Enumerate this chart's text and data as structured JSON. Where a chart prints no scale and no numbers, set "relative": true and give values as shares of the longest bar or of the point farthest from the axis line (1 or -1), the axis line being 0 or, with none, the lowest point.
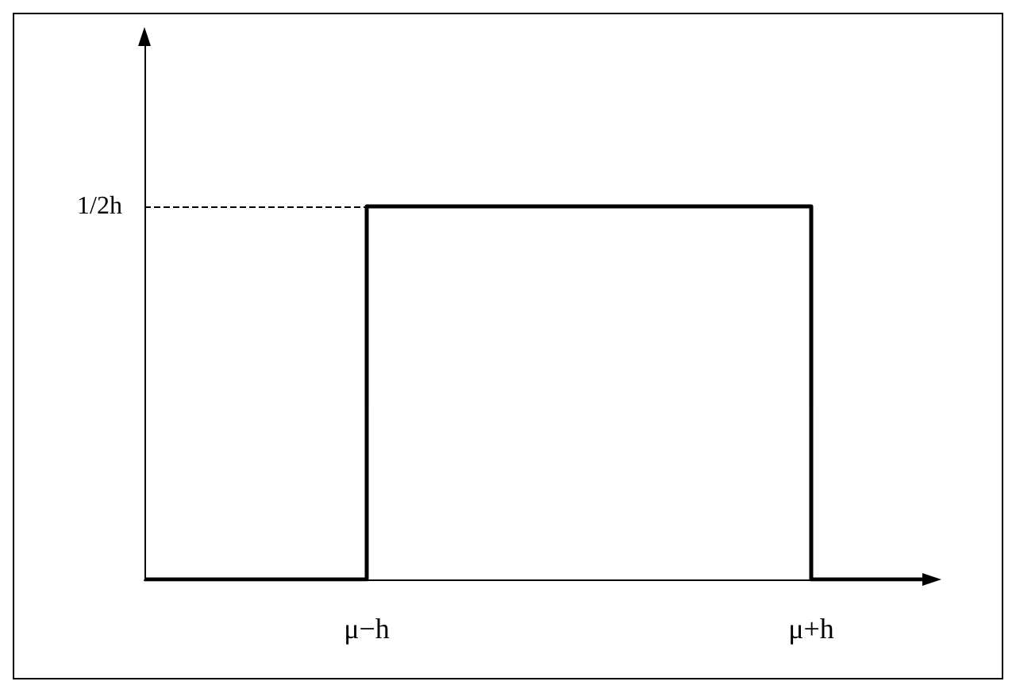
{
  "chart_data": {
    "type": "step",
    "relative": true,
    "categories": [
      null,
      null,
      "μ−h",
      null,
      null,
      null,
      "μ+h",
      null
    ],
    "series": [
      {
        "color": "#000000",
        "values": [
          0,
          0,
          1,
          1,
          1,
          1,
          0,
          0
        ]
      }
    ],
    "ref_lines": [
      {
        "axis": "y",
        "value": 1,
        "label": "1/2h",
        "line_style": "dashed",
        "color": "#000000"
      }
    ],
    "grid": false,
    "marker": "none",
    "line_style": "solid"
  }
}
